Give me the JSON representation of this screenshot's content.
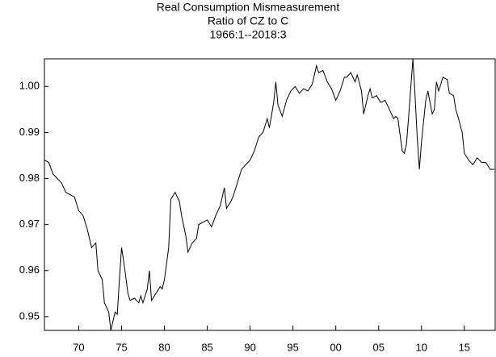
{
  "chart_data": {
    "type": "line",
    "title": "Real Consumption Mismeasurement",
    "subtitle": [
      "Ratio of CZ to C",
      "1966:1--2018:3"
    ],
    "x": [
      1966.0,
      1966.5,
      1967,
      1967.5,
      1968,
      1968.5,
      1969,
      1969.5,
      1970,
      1970.5,
      1971,
      1971.5,
      1972,
      1972.25,
      1972.75,
      1973,
      1973.5,
      1973.75,
      1974,
      1974.25,
      1974.5,
      1974.75,
      1975,
      1975.25,
      1975.75,
      1976,
      1976.5,
      1977,
      1977.25,
      1977.5,
      1978,
      1978.25,
      1978.5,
      1979,
      1979.5,
      1979.75,
      1980,
      1980.5,
      1980.75,
      1981.25,
      1981.75,
      1982,
      1982.5,
      1982.75,
      1983.25,
      1983.75,
      1984,
      1984.5,
      1985,
      1985.5,
      1986,
      1986.5,
      1987,
      1987.25,
      1987.75,
      1988,
      1988.5,
      1989,
      1989.5,
      1990,
      1990.5,
      1991,
      1991.5,
      1992,
      1992.25,
      1992.75,
      1993,
      1993.25,
      1993.75,
      1994.25,
      1994.75,
      1995.25,
      1995.75,
      1996.25,
      1996.75,
      1997.25,
      1997.75,
      1998,
      1998.5,
      1999,
      1999.5,
      2000,
      2000.5,
      2001,
      2001.25,
      2001.75,
      2002.25,
      2002.5,
      2003,
      2003.25,
      2003.75,
      2004,
      2004.25,
      2004.75,
      2005.25,
      2005.75,
      2006.25,
      2006.75,
      2007,
      2007.25,
      2007.75,
      2008,
      2008.25,
      2008.5,
      2009,
      2009.25,
      2009.5,
      2009.75,
      2010,
      2010.5,
      2010.75,
      2011.25,
      2011.5,
      2011.75,
      2012,
      2012.5,
      2013,
      2013.25,
      2013.75,
      2014,
      2014.25,
      2014.75,
      2015,
      2015.5,
      2016,
      2016.5,
      2017,
      2017.5,
      2018,
      2018.5
    ],
    "series": [
      {
        "color": "#000000",
        "values": [
          0.984,
          0.9835,
          0.981,
          0.98,
          0.979,
          0.977,
          0.9765,
          0.976,
          0.973,
          0.972,
          0.969,
          0.965,
          0.966,
          0.96,
          0.958,
          0.953,
          0.951,
          0.947,
          0.949,
          0.951,
          0.9505,
          0.958,
          0.965,
          0.962,
          0.955,
          0.9535,
          0.954,
          0.953,
          0.9545,
          0.953,
          0.956,
          0.96,
          0.9535,
          0.955,
          0.9565,
          0.956,
          0.958,
          0.965,
          0.9755,
          0.977,
          0.975,
          0.972,
          0.9675,
          0.964,
          0.966,
          0.967,
          0.97,
          0.9705,
          0.971,
          0.9695,
          0.972,
          0.974,
          0.978,
          0.9735,
          0.975,
          0.976,
          0.979,
          0.982,
          0.983,
          0.984,
          0.986,
          0.989,
          0.99,
          0.993,
          0.991,
          0.9965,
          1.001,
          0.996,
          0.9935,
          0.997,
          0.999,
          1.0,
          0.9985,
          0.9995,
          0.999,
          1.0005,
          1.0045,
          1.003,
          1.0035,
          1.001,
          0.9995,
          0.997,
          0.999,
          1.002,
          1.002,
          1.003,
          1.001,
          1.0025,
          0.999,
          0.994,
          0.998,
          0.9995,
          0.9975,
          0.998,
          0.9965,
          0.997,
          0.995,
          0.993,
          0.9935,
          0.993,
          0.986,
          0.9855,
          0.9875,
          0.9935,
          1.006,
          0.998,
          0.989,
          0.982,
          0.988,
          0.997,
          0.999,
          0.994,
          0.995,
          1.001,
          0.999,
          1.002,
          1.0015,
          0.9985,
          0.998,
          0.995,
          0.9935,
          0.99,
          0.9855,
          0.984,
          0.983,
          0.9845,
          0.9835,
          0.9835,
          0.982,
          0.982
        ]
      }
    ],
    "xlim": [
      1966,
      2018.6
    ],
    "xticks": [
      {
        "value": 1970,
        "label": "70"
      },
      {
        "value": 1975,
        "label": "75"
      },
      {
        "value": 1980,
        "label": "80"
      },
      {
        "value": 1985,
        "label": "85"
      },
      {
        "value": 1990,
        "label": "90"
      },
      {
        "value": 1995,
        "label": "95"
      },
      {
        "value": 2000,
        "label": "00"
      },
      {
        "value": 2005,
        "label": "05"
      },
      {
        "value": 2010,
        "label": "10"
      },
      {
        "value": 2015,
        "label": "15"
      }
    ],
    "ylim": [
      0.947,
      1.006
    ],
    "yticks": [
      {
        "value": 0.95,
        "label": "0.95"
      },
      {
        "value": 0.96,
        "label": "0.96"
      },
      {
        "value": 0.97,
        "label": "0.97"
      },
      {
        "value": 0.98,
        "label": "0.98"
      },
      {
        "value": 0.99,
        "label": "0.99"
      },
      {
        "value": 1.0,
        "label": "1.00"
      }
    ],
    "grid": false
  }
}
